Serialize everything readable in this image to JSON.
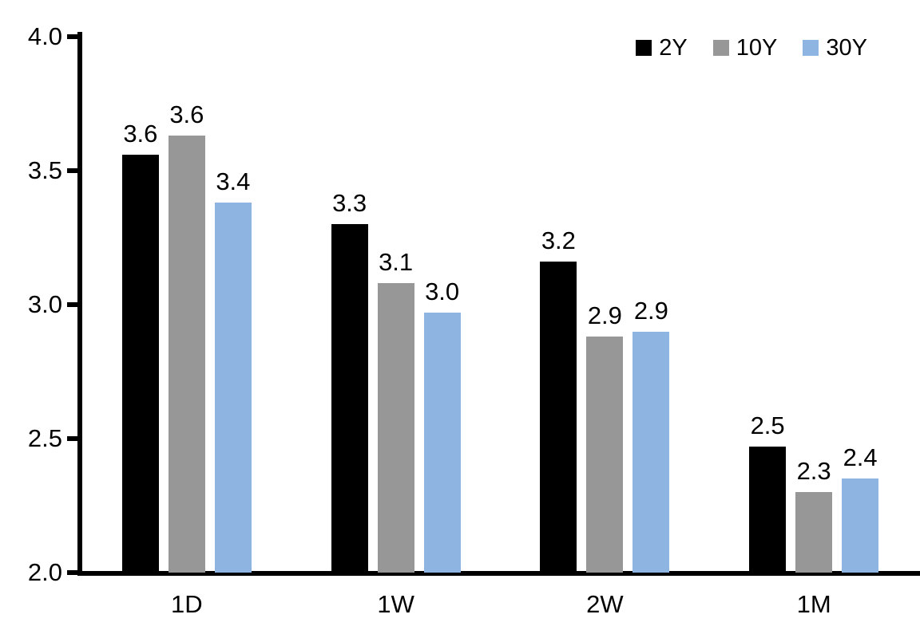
{
  "chart_data": {
    "type": "bar",
    "title": "",
    "xlabel": "",
    "ylabel": "",
    "categories": [
      "1D",
      "1W",
      "2W",
      "1M"
    ],
    "series": [
      {
        "name": "2Y",
        "color": "#000000",
        "values": [
          3.56,
          3.3,
          3.16,
          2.47
        ],
        "labels": [
          "3.6",
          "3.3",
          "3.2",
          "2.5"
        ]
      },
      {
        "name": "10Y",
        "color": "#979797",
        "values": [
          3.63,
          3.08,
          2.88,
          2.3
        ],
        "labels": [
          "3.6",
          "3.1",
          "2.9",
          "2.3"
        ]
      },
      {
        "name": "30Y",
        "color": "#8EB4E2",
        "values": [
          3.38,
          2.97,
          2.9,
          2.35
        ],
        "labels": [
          "3.4",
          "3.0",
          "2.9",
          "2.4"
        ]
      }
    ],
    "ylim": [
      2.0,
      4.0
    ],
    "yticks": [
      {
        "value": 4.0,
        "label": "4.0"
      },
      {
        "value": 3.5,
        "label": "3.5"
      },
      {
        "value": 3.0,
        "label": "3.0"
      },
      {
        "value": 2.5,
        "label": "2.5"
      },
      {
        "value": 2.0,
        "label": "2.0"
      }
    ],
    "grid": false,
    "legend_position": "top-right",
    "axis_color": "#000000",
    "background_color": "#FFFFFF"
  }
}
